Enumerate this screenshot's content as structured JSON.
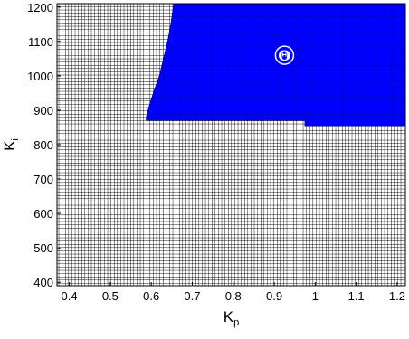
{
  "chart_data": {
    "type": "heatmap",
    "title": "",
    "xlabel": {
      "base": "K",
      "sub": "p"
    },
    "ylabel": {
      "base": "K",
      "sub": "i"
    },
    "xlim": [
      0.37,
      1.22
    ],
    "ylim": [
      390,
      1210
    ],
    "x_ticks": [
      "0.4",
      "0.5",
      "0.6",
      "0.7",
      "0.8",
      "0.9",
      "1",
      "1.1",
      "1.2"
    ],
    "x_tick_values": [
      0.4,
      0.5,
      0.6,
      0.7,
      0.8,
      0.9,
      1.0,
      1.1,
      1.2
    ],
    "y_ticks": [
      "400",
      "500",
      "600",
      "700",
      "800",
      "900",
      "1000",
      "1100",
      "1200"
    ],
    "y_tick_values": [
      400,
      500,
      600,
      700,
      800,
      900,
      1000,
      1100,
      1200
    ],
    "grid": "dense mesh",
    "background_color": "#ffffff",
    "mesh_color": "#000000",
    "region": {
      "name": "Θ",
      "color": "#0000ff",
      "boundary": [
        [
          0.655,
          1210
        ],
        [
          0.648,
          1150
        ],
        [
          0.64,
          1100
        ],
        [
          0.63,
          1050
        ],
        [
          0.62,
          1000
        ],
        [
          0.608,
          960
        ],
        [
          0.597,
          920
        ],
        [
          0.588,
          880
        ],
        [
          0.588,
          870
        ],
        [
          0.975,
          870
        ],
        [
          0.975,
          855
        ],
        [
          1.22,
          855
        ],
        [
          1.22,
          1210
        ]
      ]
    },
    "annotations": [
      {
        "text": "Θ",
        "x": 0.925,
        "y": 1060,
        "shape": "circle"
      }
    ]
  }
}
